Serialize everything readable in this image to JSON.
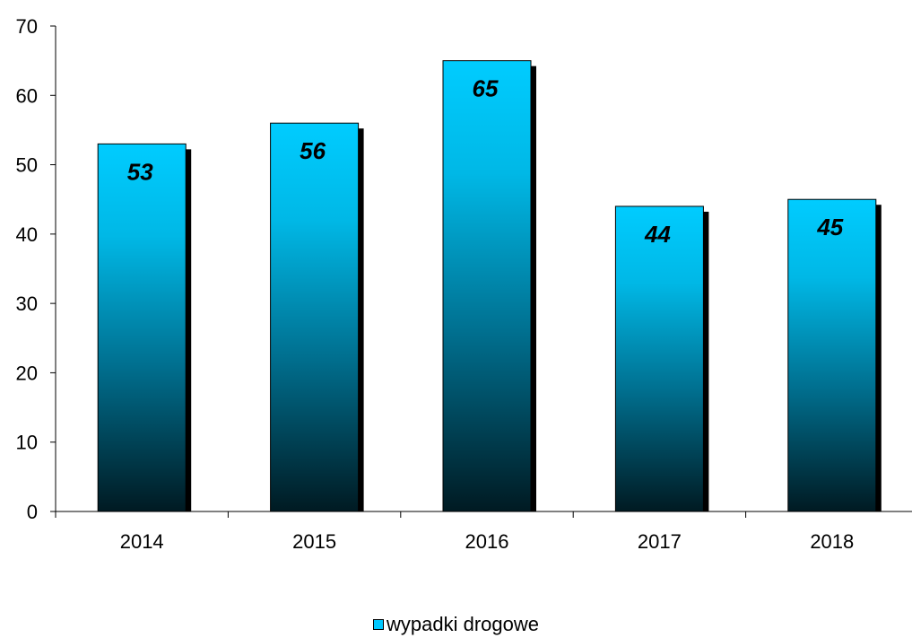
{
  "chart_data": {
    "type": "bar",
    "categories": [
      "2014",
      "2015",
      "2016",
      "2017",
      "2018"
    ],
    "series": [
      {
        "name": "wypadki drogowe",
        "values": [
          53,
          56,
          65,
          44,
          45
        ]
      }
    ],
    "data_labels": [
      "53",
      "56",
      "65",
      "44",
      "45"
    ],
    "y_ticks": [
      "0",
      "10",
      "20",
      "30",
      "40",
      "50",
      "60",
      "70"
    ],
    "ylim": [
      0,
      70
    ],
    "grid": false,
    "legend_position": "bottom-center",
    "colors": {
      "bar_top": "#00ccff",
      "bar_bottom": "#001a22",
      "shadow": "#000000"
    }
  }
}
